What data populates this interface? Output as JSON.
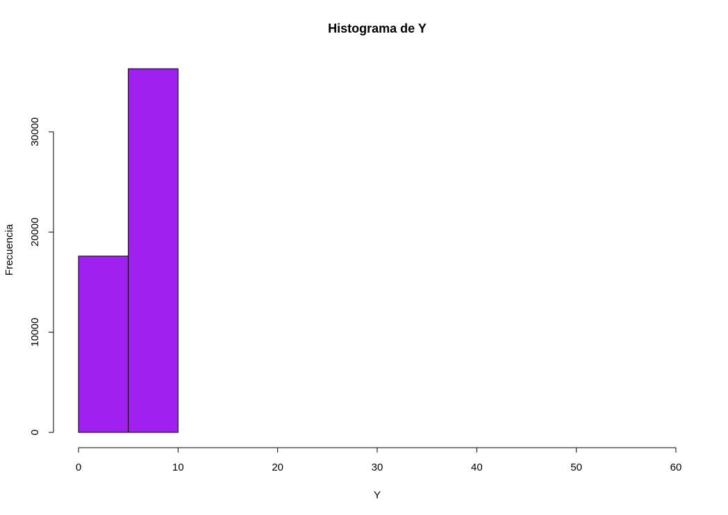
{
  "chart_data": {
    "type": "bar",
    "title": "Histograma de Y",
    "xlabel": "Y",
    "ylabel": "Frecuencia",
    "bins": [
      {
        "start": 0,
        "end": 5,
        "value": 17600
      },
      {
        "start": 5,
        "end": 10,
        "value": 36300
      },
      {
        "start": 10,
        "end": 15,
        "value": 0
      },
      {
        "start": 15,
        "end": 20,
        "value": 0
      },
      {
        "start": 20,
        "end": 25,
        "value": 0
      },
      {
        "start": 25,
        "end": 30,
        "value": 0
      },
      {
        "start": 30,
        "end": 35,
        "value": 0
      },
      {
        "start": 35,
        "end": 40,
        "value": 0
      },
      {
        "start": 40,
        "end": 45,
        "value": 0
      },
      {
        "start": 45,
        "end": 50,
        "value": 0
      },
      {
        "start": 50,
        "end": 55,
        "value": 0
      },
      {
        "start": 55,
        "end": 60,
        "value": 0
      }
    ],
    "xlim": [
      0,
      60
    ],
    "ylim": [
      0,
      36300
    ],
    "xticks": [
      0,
      10,
      20,
      30,
      40,
      50,
      60
    ],
    "yticks": [
      0,
      10000,
      20000,
      30000
    ],
    "xtick_labels": [
      "0",
      "10",
      "20",
      "30",
      "40",
      "50",
      "60"
    ],
    "ytick_labels": [
      "0",
      "10000",
      "20000",
      "30000"
    ],
    "bar_color": "#a020f0",
    "edge_color": "#000000",
    "grid": false
  }
}
